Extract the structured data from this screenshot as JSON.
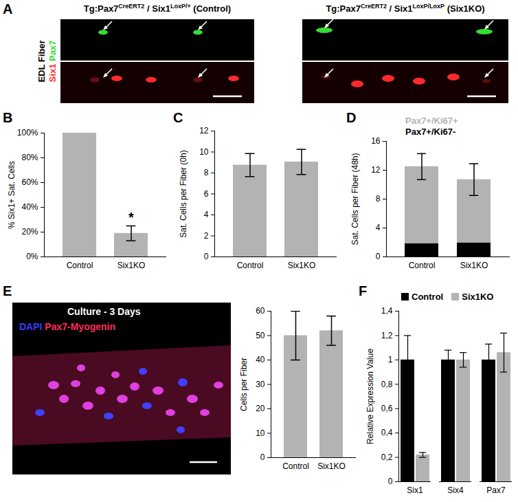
{
  "figure": {
    "panel_a": {
      "panel": "A",
      "titles": [
        [
          {
            "text": "Tg:Pax7"
          },
          {
            "text": "CreERT2",
            "sup": true
          },
          {
            "text": " / Six1"
          },
          {
            "text": "LoxP/+",
            "sup": true
          },
          {
            "text": " (Control)"
          }
        ],
        [
          {
            "text": "Tg:Pax7"
          },
          {
            "text": "CreERT2",
            "sup": true
          },
          {
            "text": " / Six1"
          },
          {
            "text": "LoxP/LoxP",
            "sup": true
          },
          {
            "text": " (Six1KO)"
          }
        ]
      ],
      "side_label": "EDL Fiber",
      "channels": [
        {
          "text": "Six1",
          "color": "#ff2a2a"
        },
        {
          "text": "Pax7",
          "color": "#33dd33"
        }
      ]
    },
    "panel_e_image": {
      "panel": "E",
      "title": "Culture - 3 Days",
      "channels": [
        {
          "text": "DAPI",
          "color": "#3a3aff"
        },
        {
          "text": "Pax7-Myogenin",
          "color": "#ff2a5a"
        }
      ]
    }
  },
  "chart_data": [
    {
      "panel": "B",
      "type": "bar",
      "categories": [
        "Control",
        "Six1KO"
      ],
      "values": [
        100,
        19
      ],
      "errors": [
        null,
        6
      ],
      "color": "#b3b3b3",
      "ylabel": "% Six1+ Sat. Cells",
      "ylim": [
        0,
        100
      ],
      "yticks": [
        {
          "value": 0,
          "label": "0%"
        },
        {
          "value": 20,
          "label": "20%"
        },
        {
          "value": 40,
          "label": "40%"
        },
        {
          "value": 60,
          "label": "60%"
        },
        {
          "value": 80,
          "label": "80%"
        },
        {
          "value": 100,
          "label": "100%"
        }
      ],
      "annotations": [
        {
          "category": "Six1KO",
          "text": "*"
        }
      ]
    },
    {
      "panel": "C",
      "type": "bar",
      "categories": [
        "Control",
        "Six1KO"
      ],
      "values": [
        8.75,
        9.05
      ],
      "errors": [
        1.1,
        1.2
      ],
      "color": "#b3b3b3",
      "ylabel": "Sat. Cells per Fiber (0h)",
      "ylim": [
        0,
        12
      ],
      "yticks": [
        0,
        2,
        4,
        6,
        8,
        10,
        12
      ]
    },
    {
      "panel": "D",
      "type": "bar",
      "stacked": true,
      "categories": [
        "Control",
        "Six1KO"
      ],
      "series": [
        {
          "name": "Pax7+/Ki67-",
          "color": "#000000",
          "values": [
            1.85,
            1.95
          ]
        },
        {
          "name": "Pax7+/Ki67+",
          "color": "#b3b3b3",
          "values": [
            10.65,
            8.75
          ]
        }
      ],
      "errors": [
        1.8,
        2.2
      ],
      "legend": "top",
      "ylabel": "Sat. Cells per Fiber (48h)",
      "ylim": [
        0,
        16
      ],
      "yticks": [
        0,
        4,
        8,
        12,
        16
      ]
    },
    {
      "type": "bar",
      "categories": [
        "Control",
        "Six1KO"
      ],
      "values": [
        50,
        52
      ],
      "errors": [
        10,
        6
      ],
      "color": "#b3b3b3",
      "ylabel": "Cells per Fiber",
      "ylim": [
        0,
        60
      ],
      "yticks": [
        0,
        10,
        20,
        30,
        40,
        50,
        60
      ]
    },
    {
      "panel": "F",
      "type": "bar",
      "categories": [
        "Six1",
        "Six4",
        "Pax7"
      ],
      "series": [
        {
          "name": "Control",
          "color": "#000000",
          "values": [
            1,
            1,
            1
          ],
          "errors": [
            0.2,
            0.08,
            0.13
          ]
        },
        {
          "name": "Six1KO",
          "color": "#b3b3b3",
          "values": [
            0.22,
            1.0,
            1.06
          ],
          "errors": [
            0.02,
            0.06,
            0.16
          ]
        }
      ],
      "legend": "top-right",
      "ylabel": "Relative Expression Value",
      "ylim": [
        0,
        1.4
      ],
      "yticks": [
        0,
        {
          "value": 0.2,
          "label": "0,2"
        },
        {
          "value": 0.4,
          "label": "0,4"
        },
        {
          "value": 0.6,
          "label": "0,6"
        },
        {
          "value": 0.8,
          "label": "0,8"
        },
        1,
        {
          "value": 1.2,
          "label": "1,2"
        },
        {
          "value": 1.4,
          "label": "1,4"
        }
      ]
    }
  ]
}
